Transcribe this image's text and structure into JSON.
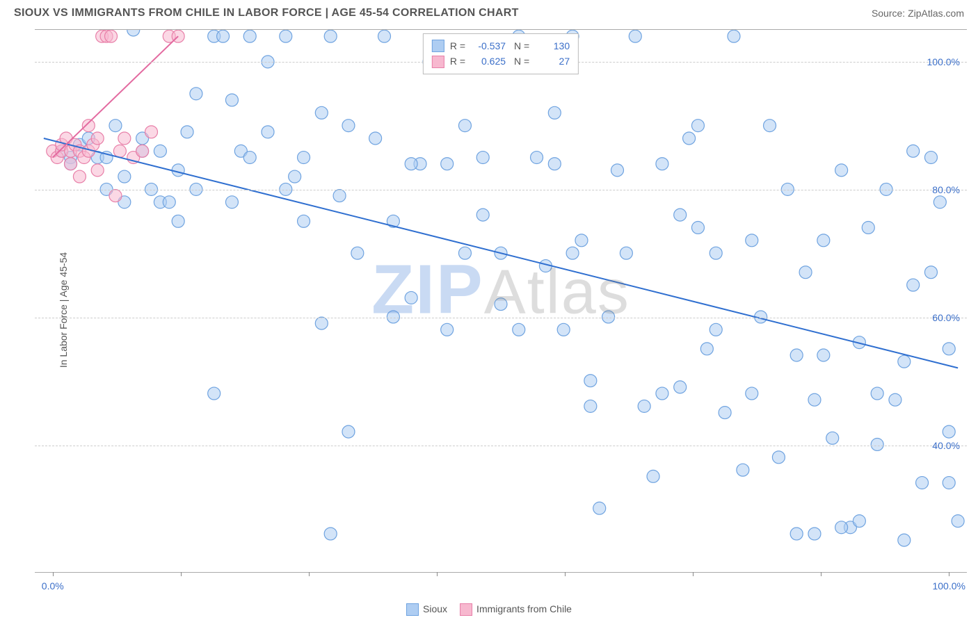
{
  "header": {
    "title": "SIOUX VS IMMIGRANTS FROM CHILE IN LABOR FORCE | AGE 45-54 CORRELATION CHART",
    "source": "Source: ZipAtlas.com"
  },
  "watermark": {
    "z": "ZIP",
    "rest": "Atlas"
  },
  "chart": {
    "type": "scatter",
    "y_label": "In Labor Force | Age 45-54",
    "background_color": "#ffffff",
    "grid_color": "#cccccc",
    "axis_text_color": "#3b6fc9",
    "xlim": [
      -2,
      102
    ],
    "ylim": [
      20,
      105
    ],
    "y_ticks": [
      40,
      60,
      80,
      100
    ],
    "y_tick_labels": [
      "40.0%",
      "60.0%",
      "80.0%",
      "100.0%"
    ],
    "x_ticks": [
      0,
      14.28,
      28.56,
      42.84,
      57.12,
      71.4,
      85.68,
      100
    ],
    "x_tick_labels_shown": {
      "0": "0.0%",
      "100": "100.0%"
    },
    "marker_radius": 9,
    "marker_stroke_width": 1.2,
    "series": [
      {
        "name": "Sioux",
        "fill": "#aecdf2",
        "stroke": "#6fa3e0",
        "fill_opacity": 0.55,
        "points": [
          [
            1,
            86
          ],
          [
            2,
            85
          ],
          [
            3,
            87
          ],
          [
            2,
            84
          ],
          [
            4,
            88
          ],
          [
            5,
            85
          ],
          [
            6,
            85
          ],
          [
            7,
            90
          ],
          [
            8,
            82
          ],
          [
            9,
            105
          ],
          [
            10,
            86
          ],
          [
            12,
            78
          ],
          [
            11,
            80
          ],
          [
            13,
            78
          ],
          [
            14,
            83
          ],
          [
            15,
            89
          ],
          [
            16,
            95
          ],
          [
            18,
            104
          ],
          [
            19,
            104
          ],
          [
            20,
            94
          ],
          [
            21,
            86
          ],
          [
            22,
            104
          ],
          [
            24,
            100
          ],
          [
            26,
            104
          ],
          [
            27,
            82
          ],
          [
            28,
            75
          ],
          [
            30,
            92
          ],
          [
            31,
            104
          ],
          [
            32,
            79
          ],
          [
            33,
            90
          ],
          [
            34,
            70
          ],
          [
            18,
            48
          ],
          [
            30,
            59
          ],
          [
            37,
            104
          ],
          [
            38,
            75
          ],
          [
            40,
            63
          ],
          [
            41,
            84
          ],
          [
            42,
            100
          ],
          [
            44,
            84
          ],
          [
            46,
            70
          ],
          [
            48,
            76
          ],
          [
            50,
            62
          ],
          [
            52,
            58
          ],
          [
            54,
            85
          ],
          [
            55,
            68
          ],
          [
            31,
            26
          ],
          [
            33,
            42
          ],
          [
            56,
            92
          ],
          [
            57,
            58
          ],
          [
            58,
            104
          ],
          [
            59,
            72
          ],
          [
            60,
            46
          ],
          [
            61,
            30
          ],
          [
            62,
            60
          ],
          [
            63,
            83
          ],
          [
            64,
            70
          ],
          [
            65,
            104
          ],
          [
            66,
            46
          ],
          [
            67,
            35
          ],
          [
            68,
            84
          ],
          [
            70,
            49
          ],
          [
            71,
            88
          ],
          [
            72,
            74
          ],
          [
            73,
            55
          ],
          [
            74,
            70
          ],
          [
            75,
            45
          ],
          [
            76,
            104
          ],
          [
            77,
            36
          ],
          [
            78,
            72
          ],
          [
            79,
            60
          ],
          [
            80,
            90
          ],
          [
            81,
            38
          ],
          [
            82,
            80
          ],
          [
            83,
            54
          ],
          [
            84,
            67
          ],
          [
            85,
            47
          ],
          [
            86,
            72
          ],
          [
            87,
            41
          ],
          [
            88,
            83
          ],
          [
            89,
            27
          ],
          [
            90,
            56
          ],
          [
            91,
            74
          ],
          [
            92,
            40
          ],
          [
            93,
            80
          ],
          [
            94,
            47
          ],
          [
            95,
            25
          ],
          [
            96,
            86
          ],
          [
            97,
            34
          ],
          [
            98,
            67
          ],
          [
            99,
            78
          ],
          [
            100,
            42
          ],
          [
            100,
            55
          ],
          [
            100,
            34
          ],
          [
            101,
            28
          ],
          [
            88,
            27
          ],
          [
            90,
            28
          ],
          [
            85,
            26
          ],
          [
            83,
            26
          ],
          [
            95,
            53
          ],
          [
            92,
            48
          ],
          [
            70,
            76
          ],
          [
            72,
            90
          ],
          [
            74,
            58
          ],
          [
            56,
            84
          ],
          [
            58,
            70
          ],
          [
            44,
            58
          ],
          [
            46,
            90
          ],
          [
            48,
            85
          ],
          [
            36,
            88
          ],
          [
            38,
            60
          ],
          [
            24,
            89
          ],
          [
            26,
            80
          ],
          [
            28,
            85
          ],
          [
            20,
            78
          ],
          [
            22,
            85
          ],
          [
            14,
            75
          ],
          [
            16,
            80
          ],
          [
            10,
            88
          ],
          [
            12,
            86
          ],
          [
            6,
            80
          ],
          [
            8,
            78
          ],
          [
            40,
            84
          ],
          [
            50,
            70
          ],
          [
            60,
            50
          ],
          [
            68,
            48
          ],
          [
            78,
            48
          ],
          [
            86,
            54
          ],
          [
            96,
            65
          ],
          [
            98,
            85
          ],
          [
            52,
            104
          ]
        ],
        "trend_line": {
          "x1": -1,
          "y1": 88,
          "x2": 101,
          "y2": 52,
          "color": "#2f6fd0",
          "width": 2
        }
      },
      {
        "name": "Immigrants from Chile",
        "fill": "#f7b8cf",
        "stroke": "#e87fa8",
        "fill_opacity": 0.55,
        "points": [
          [
            0,
            86
          ],
          [
            0.5,
            85
          ],
          [
            1,
            86
          ],
          [
            1,
            87
          ],
          [
            1.5,
            88
          ],
          [
            2,
            86
          ],
          [
            2,
            84
          ],
          [
            2.5,
            87
          ],
          [
            3,
            86
          ],
          [
            3,
            82
          ],
          [
            3.5,
            85
          ],
          [
            4,
            86
          ],
          [
            4,
            90
          ],
          [
            4.5,
            87
          ],
          [
            5,
            88
          ],
          [
            5,
            83
          ],
          [
            5.5,
            104
          ],
          [
            6,
            104
          ],
          [
            6.5,
            104
          ],
          [
            7,
            79
          ],
          [
            7.5,
            86
          ],
          [
            8,
            88
          ],
          [
            9,
            85
          ],
          [
            10,
            86
          ],
          [
            11,
            89
          ],
          [
            13,
            104
          ],
          [
            14,
            104
          ]
        ],
        "trend_line": {
          "x1": 0,
          "y1": 85,
          "x2": 14,
          "y2": 104,
          "color": "#e36aa0",
          "width": 2
        }
      }
    ],
    "stats_legend": {
      "rows": [
        {
          "swatch_fill": "#aecdf2",
          "swatch_stroke": "#6fa3e0",
          "r_label": "R =",
          "r_value": "-0.537",
          "n_label": "N =",
          "n_value": "130"
        },
        {
          "swatch_fill": "#f7b8cf",
          "swatch_stroke": "#e87fa8",
          "r_label": "R =",
          "r_value": "0.625",
          "n_label": "N =",
          "n_value": "27"
        }
      ]
    },
    "bottom_legend": [
      {
        "swatch_fill": "#aecdf2",
        "swatch_stroke": "#6fa3e0",
        "label": "Sioux"
      },
      {
        "swatch_fill": "#f7b8cf",
        "swatch_stroke": "#e87fa8",
        "label": "Immigrants from Chile"
      }
    ]
  }
}
